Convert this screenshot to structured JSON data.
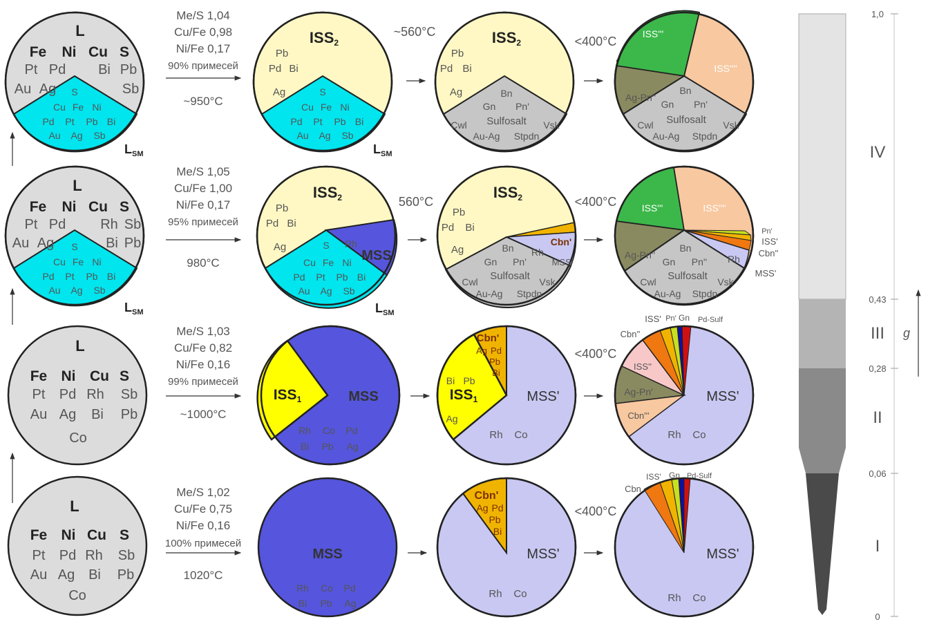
{
  "colors": {
    "melt": "#dcdcdc",
    "sulfide_melt": "#00e5ee",
    "iss2": "#fff8c4",
    "iss1": "#ffff00",
    "mss": "#5555dd",
    "mss_prime": "#c8c8f2",
    "sulfosalt": "#c6c6c6",
    "iss_late_green": "#3cb84a",
    "iss_late_peach": "#f8c8a0",
    "ag_pn": "#8a8a60",
    "cbn": "#f0b400",
    "pink": "#f8c8c8",
    "orange": "#f07810",
    "yellow_green": "#c8e020",
    "gn_blue": "#1010a0",
    "pd_sulf_red": "#d01010",
    "col_gray_1": "#e4e4e4",
    "col_gray_2": "#b4b4b4",
    "col_gray_3": "#8a8a8a",
    "col_gray_4": "#4a4a4a"
  },
  "rows": [
    {
      "melt": {
        "title": "L",
        "elements": [
          "Fe",
          "Ni",
          "Cu",
          "S",
          "Pt",
          "Pd",
          "Bi",
          "Pb",
          "Au",
          "Ag",
          "Sb"
        ],
        "sulfide_melt": {
          "title": "S",
          "elements": [
            "Cu",
            "Fe",
            "Ni",
            "Pd",
            "Pt",
            "Pb",
            "Bi",
            "Au",
            "Ag",
            "Sb"
          ]
        },
        "label": "L",
        "label_sub": "SM"
      },
      "params": {
        "me_s": "Me/S  1,04",
        "cu_fe": "Cu/Fe 0,98",
        "ni_fe": "Ni/Fe  0,17",
        "impurities": "90% примесей",
        "temperature": "~950°C"
      },
      "stage2": {
        "title": "ISS",
        "title_sub": "2",
        "elements": [
          "Pb",
          "Pd",
          "Bi",
          "Ag"
        ],
        "sulfide_melt": {
          "title": "S",
          "elements": [
            "Cu",
            "Fe",
            "Ni",
            "Pd",
            "Pt",
            "Pb",
            "Bi",
            "Au",
            "Ag",
            "Sb"
          ]
        },
        "label": "L",
        "label_sub": "SM",
        "temperature": "~560°C"
      },
      "stage3": {
        "title": "ISS",
        "title_sub": "2",
        "elements": [
          "Pb",
          "Pd",
          "Bi",
          "Ag"
        ],
        "sulfosalt": [
          "Bn",
          "Gn",
          "Pn'",
          "Cwl",
          "Sulfosalt",
          "Vsk",
          "Au-Ag",
          "Stpdn"
        ],
        "temperature": "<400°C"
      },
      "stage4": {
        "wedges": [
          "ISS'''",
          "ISS''''",
          "Ag-Pn''"
        ],
        "sulfosalt": [
          "Bn",
          "Gn",
          "Pn'",
          "Cwl",
          "Sulfosalt",
          "Vsk",
          "Au-Ag",
          "Stpdn"
        ]
      }
    },
    {
      "melt": {
        "title": "L",
        "elements": [
          "Fe",
          "Ni",
          "Cu",
          "S",
          "Pt",
          "Pd",
          "Rh",
          "Sb",
          "Au",
          "Ag",
          "Bi",
          "Pb"
        ],
        "sulfide_melt": {
          "title": "S",
          "elements": [
            "Cu",
            "Fe",
            "Ni",
            "Pd",
            "Pt",
            "Pb",
            "Bi",
            "Au",
            "Ag",
            "Sb"
          ]
        },
        "label": "L",
        "label_sub": "SM"
      },
      "params": {
        "me_s": "Me/S  1,05",
        "cu_fe": "Cu/Fe 1,00",
        "ni_fe": "Ni/Fe  0,17",
        "impurities": "95% примесей",
        "temperature": "980°C"
      },
      "stage2": {
        "title": "ISS",
        "title_sub": "2",
        "elements": [
          "Pb",
          "Pd",
          "Bi",
          "Ag"
        ],
        "mss": "MSS",
        "mss_rh": "Rh",
        "sulfide_melt": {
          "title": "S",
          "elements": [
            "Cu",
            "Fe",
            "Ni",
            "Pd",
            "Pt",
            "Pb",
            "Bi",
            "Au",
            "Ag",
            "Sb"
          ]
        },
        "label": "L",
        "label_sub": "SM",
        "temperature": "560°C"
      },
      "stage3": {
        "title": "ISS",
        "title_sub": "2",
        "elements": [
          "Pb",
          "Pd",
          "Bi",
          "Ag"
        ],
        "cbn": "Cbn'",
        "rh": "Rh",
        "mss": "MSS'",
        "sulfosalt": [
          "Bn",
          "Gn",
          "Pn'",
          "Cwl",
          "Sulfosalt",
          "Vsk",
          "Au-Ag",
          "Stpdn"
        ],
        "temperature": "<400°C"
      },
      "stage4": {
        "wedges": [
          "ISS'''",
          "ISS''''",
          "Ag-Pn''",
          "Rh"
        ],
        "outer": [
          "Pn'",
          "ISS'",
          "Cbn''",
          "MSS'"
        ],
        "sulfosalt": [
          "Bn",
          "Gn",
          "Pn''",
          "Cwl",
          "Sulfosalt",
          "Vsk",
          "Au-Ag",
          "Stpdn"
        ]
      }
    },
    {
      "melt": {
        "title": "L",
        "elements": [
          "Fe",
          "Ni",
          "Cu",
          "S",
          "Pt",
          "Pd",
          "Rh",
          "Sb",
          "Au",
          "Ag",
          "Bi",
          "Pb",
          "Co"
        ]
      },
      "params": {
        "me_s": "Me/S  1,03",
        "cu_fe": "Cu/Fe 0,82",
        "ni_fe": "Ni/Fe  0,16",
        "impurities": "99% примесей",
        "temperature": "~1000°C"
      },
      "stage2": {
        "iss": "ISS",
        "iss_sub": "1",
        "mss": "MSS",
        "elements": [
          "Rh",
          "Co",
          "Pd",
          "Bi",
          "Pb",
          "Ag"
        ]
      },
      "stage3": {
        "cbn": "Cbn'",
        "cbn_elements": [
          "Ag",
          "Pd",
          "Pb",
          "Bi"
        ],
        "iss": "ISS",
        "iss_sub": "1",
        "iss_elements": [
          "Bi",
          "Pb",
          "Ag"
        ],
        "mss": "MSS'",
        "mss_elements": [
          "Rh",
          "Co"
        ],
        "temperature": "<400°C"
      },
      "stage4": {
        "mss": "MSS'",
        "mss_elements": [
          "Rh",
          "Co"
        ],
        "wedges": [
          "ISS''",
          "Ag-Pn'",
          "Cbn'''"
        ],
        "outer": [
          "ISS'",
          "Pn'",
          "Gn",
          "Pd-Sulf",
          "Cbn''"
        ]
      }
    },
    {
      "melt": {
        "title": "L",
        "elements": [
          "Fe",
          "Ni",
          "Cu",
          "S",
          "Pt",
          "Pd",
          "Rh",
          "Sb",
          "Au",
          "Ag",
          "Bi",
          "Pb",
          "Co"
        ]
      },
      "params": {
        "me_s": "Me/S  1,02",
        "cu_fe": "Cu/Fe 0,75",
        "ni_fe": "Ni/Fe  0,16",
        "impurities": "100% примесей",
        "temperature": "1020°C"
      },
      "stage2": {
        "mss": "MSS",
        "elements": [
          "Rh",
          "Co",
          "Pd",
          "Bi",
          "Pb",
          "Ag"
        ]
      },
      "stage3": {
        "cbn": "Cbn'",
        "cbn_elements": [
          "Ag",
          "Pd",
          "Pb",
          "Bi"
        ],
        "mss": "MSS'",
        "mss_elements": [
          "Rh",
          "Co"
        ],
        "temperature": "<400°C"
      },
      "stage4": {
        "mss": "MSS'",
        "mss_elements": [
          "Rh",
          "Co"
        ],
        "outer": [
          "Cbn",
          "ISS'",
          "Gn",
          "Pd-Sulf"
        ]
      }
    }
  ],
  "scale": {
    "ticks": [
      "1,0",
      "0,43",
      "0,28",
      "0,06",
      "0"
    ],
    "tick_values": [
      1.0,
      0.43,
      0.28,
      0.06,
      0
    ],
    "zones": [
      "IV",
      "III",
      "II",
      "I"
    ],
    "axis_label": "g"
  }
}
